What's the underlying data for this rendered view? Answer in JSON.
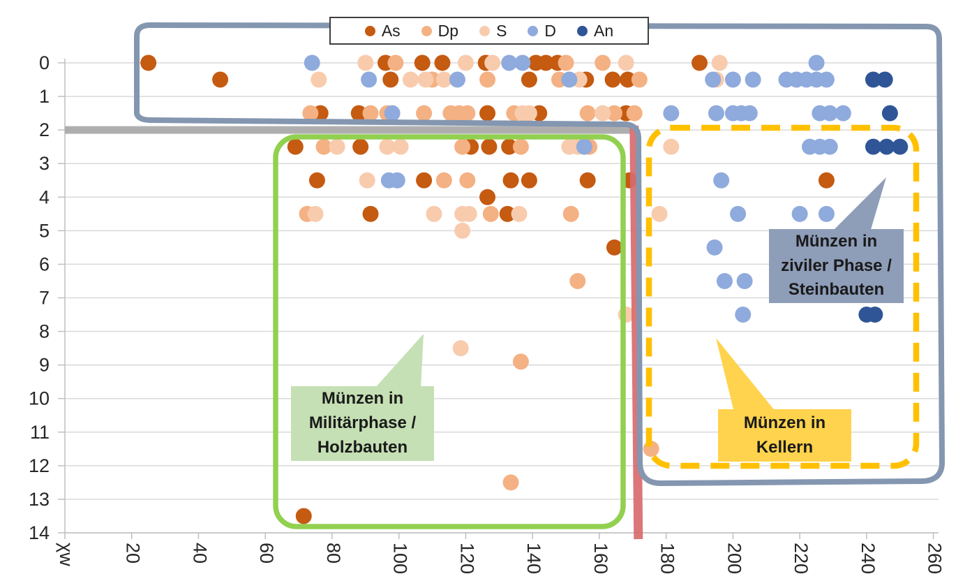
{
  "legend": {
    "items": [
      {
        "label": "As",
        "color": "#C55A11"
      },
      {
        "label": "Dp",
        "color": "#F4B183"
      },
      {
        "label": "S",
        "color": "#F8CBAD"
      },
      {
        "label": "D",
        "color": "#8FAADC"
      },
      {
        "label": "An",
        "color": "#2F5597"
      }
    ]
  },
  "annotations": {
    "military": {
      "lines": [
        "Münzen in",
        "Militärphase /",
        "Holzbauten"
      ],
      "fill": "#C5E0B4",
      "border_color": "#92D050",
      "border_style": "solid"
    },
    "kellern": {
      "lines": [
        "Münzen in",
        "Kellern"
      ],
      "fill": "#FFD34D",
      "border_color": "#FFC000",
      "border_style": "dashed"
    },
    "zivil": {
      "lines": [
        "Münzen in",
        "ziviler Phase /",
        "Steinbauten"
      ],
      "fill": "#8E9DB8",
      "border_color": "#8496B0",
      "border_style": "solid"
    }
  },
  "chart_data": {
    "type": "scatter",
    "title": "",
    "xlabel": "",
    "ylabel": "",
    "x_ticks": [
      {
        "value": 0,
        "label": "χw"
      },
      {
        "value": 20,
        "label": "20"
      },
      {
        "value": 40,
        "label": "40"
      },
      {
        "value": 60,
        "label": "60"
      },
      {
        "value": 80,
        "label": "80"
      },
      {
        "value": 100,
        "label": "100"
      },
      {
        "value": 120,
        "label": "120"
      },
      {
        "value": 140,
        "label": "140"
      },
      {
        "value": 160,
        "label": "160"
      },
      {
        "value": 180,
        "label": "180"
      },
      {
        "value": 200,
        "label": "200"
      },
      {
        "value": 220,
        "label": "220"
      },
      {
        "value": 240,
        "label": "240"
      },
      {
        "value": 260,
        "label": "260"
      }
    ],
    "y_ticks": [
      "0",
      "1",
      "2",
      "3",
      "4",
      "5",
      "6",
      "7",
      "8",
      "9",
      "10",
      "11",
      "12",
      "13",
      "14"
    ],
    "xlim": [
      0,
      262
    ],
    "ylim": [
      0,
      14
    ],
    "y_inverted": true,
    "grid": "horizontal",
    "legend_position": "top-center",
    "marker_lines": {
      "gray_horizontal_at_y": 2,
      "red_vertical_at_x": 170
    },
    "regions": {
      "blue_outline": "encloses y 0–2 across full width plus x 172–262 down to y 14 (ziviler Phase / Steinbauten)",
      "green_box": {
        "x": [
          63,
          167
        ],
        "y": [
          2.2,
          13.8
        ]
      },
      "yellow_dashed_box": {
        "x": [
          175,
          255
        ],
        "y": [
          1.9,
          12.0
        ]
      }
    },
    "series": [
      {
        "name": "As",
        "color": "#C55A11",
        "points": [
          [
            25,
            0
          ],
          [
            96,
            0
          ],
          [
            107,
            0
          ],
          [
            113,
            0
          ],
          [
            126,
            0
          ],
          [
            141,
            0
          ],
          [
            144,
            0
          ],
          [
            147.5,
            0
          ],
          [
            190,
            0
          ],
          [
            46.5,
            0.5
          ],
          [
            97.5,
            0.5
          ],
          [
            139,
            0.5
          ],
          [
            156,
            0.5
          ],
          [
            164,
            0.5
          ],
          [
            168.5,
            0.5
          ],
          [
            76.5,
            1.5
          ],
          [
            88,
            1.5
          ],
          [
            126.5,
            1.5
          ],
          [
            142,
            1.5
          ],
          [
            168,
            1.5
          ],
          [
            69,
            2.5
          ],
          [
            88.5,
            2.5
          ],
          [
            121.5,
            2.5
          ],
          [
            127,
            2.5
          ],
          [
            133,
            2.5
          ],
          [
            75.5,
            3.5
          ],
          [
            107.5,
            3.5
          ],
          [
            133.5,
            3.5
          ],
          [
            139,
            3.5
          ],
          [
            156.5,
            3.5
          ],
          [
            169,
            3.5
          ],
          [
            228,
            3.5
          ],
          [
            126.5,
            4
          ],
          [
            91.5,
            4.5
          ],
          [
            132.5,
            4.5
          ],
          [
            164.5,
            5.5
          ],
          [
            71.5,
            13.5
          ]
        ]
      },
      {
        "name": "Dp",
        "color": "#F4B183",
        "points": [
          [
            99,
            0
          ],
          [
            150,
            0
          ],
          [
            161,
            0
          ],
          [
            110,
            0.5
          ],
          [
            126.5,
            0.5
          ],
          [
            148,
            0.5
          ],
          [
            172,
            0.5
          ],
          [
            73.5,
            1.5
          ],
          [
            91.5,
            1.5
          ],
          [
            96.5,
            1.5
          ],
          [
            107.5,
            1.5
          ],
          [
            115.5,
            1.5
          ],
          [
            118,
            1.5
          ],
          [
            120.5,
            1.5
          ],
          [
            134.5,
            1.5
          ],
          [
            156.5,
            1.5
          ],
          [
            164.5,
            1.5
          ],
          [
            170.5,
            1.5
          ],
          [
            77.5,
            2.5
          ],
          [
            119,
            2.5
          ],
          [
            136.5,
            2.5
          ],
          [
            157,
            2.5
          ],
          [
            113.5,
            3.5
          ],
          [
            120.5,
            3.5
          ],
          [
            72.5,
            4.5
          ],
          [
            127.5,
            4.5
          ],
          [
            151.5,
            4.5
          ],
          [
            153.5,
            6.5
          ],
          [
            136.5,
            8.9
          ],
          [
            175.5,
            11.5
          ],
          [
            133.5,
            12.5
          ]
        ]
      },
      {
        "name": "S",
        "color": "#F8CBAD",
        "points": [
          [
            90,
            0
          ],
          [
            120,
            0
          ],
          [
            128,
            0
          ],
          [
            168,
            0
          ],
          [
            196,
            0
          ],
          [
            76,
            0.5
          ],
          [
            103.5,
            0.5
          ],
          [
            108,
            0.5
          ],
          [
            113.5,
            0.5
          ],
          [
            154,
            0.5
          ],
          [
            195,
            0.5
          ],
          [
            137,
            1.5
          ],
          [
            139,
            1.5
          ],
          [
            161,
            1.5
          ],
          [
            81.5,
            2.5
          ],
          [
            96.5,
            2.5
          ],
          [
            100.5,
            2.5
          ],
          [
            151,
            2.5
          ],
          [
            153.5,
            2.5
          ],
          [
            181.5,
            2.5
          ],
          [
            90.5,
            3.5
          ],
          [
            75,
            4.5
          ],
          [
            110.5,
            4.5
          ],
          [
            119,
            4.5
          ],
          [
            121,
            4.5
          ],
          [
            136,
            4.5
          ],
          [
            178,
            4.5
          ],
          [
            119,
            5
          ],
          [
            168,
            7.5
          ],
          [
            118.5,
            8.5
          ]
        ]
      },
      {
        "name": "D",
        "color": "#8FAADC",
        "points": [
          [
            74,
            0
          ],
          [
            133,
            0
          ],
          [
            137,
            0
          ],
          [
            225,
            0
          ],
          [
            91,
            0.5
          ],
          [
            117.5,
            0.5
          ],
          [
            151,
            0.5
          ],
          [
            194,
            0.5
          ],
          [
            200,
            0.5
          ],
          [
            206,
            0.5
          ],
          [
            216,
            0.5
          ],
          [
            219,
            0.5
          ],
          [
            222,
            0.5
          ],
          [
            225,
            0.5
          ],
          [
            228,
            0.5
          ],
          [
            98,
            1.5
          ],
          [
            181.5,
            1.5
          ],
          [
            195,
            1.5
          ],
          [
            200,
            1.5
          ],
          [
            202.5,
            1.5
          ],
          [
            205,
            1.5
          ],
          [
            226,
            1.5
          ],
          [
            229,
            1.5
          ],
          [
            233,
            1.5
          ],
          [
            155.5,
            2.5
          ],
          [
            223,
            2.5
          ],
          [
            226,
            2.5
          ],
          [
            229,
            2.5
          ],
          [
            97,
            3.5
          ],
          [
            99.5,
            3.5
          ],
          [
            196.5,
            3.5
          ],
          [
            201.5,
            4.5
          ],
          [
            220,
            4.5
          ],
          [
            228,
            4.5
          ],
          [
            194.5,
            5.5
          ],
          [
            197.5,
            6.5
          ],
          [
            203.5,
            6.5
          ],
          [
            203,
            7.5
          ]
        ]
      },
      {
        "name": "An",
        "color": "#2F5597",
        "points": [
          [
            242,
            0.5
          ],
          [
            245.5,
            0.5
          ],
          [
            247,
            1.5
          ],
          [
            242,
            2.5
          ],
          [
            246,
            2.5
          ],
          [
            250,
            2.5
          ],
          [
            240,
            7.5
          ],
          [
            242.5,
            7.5
          ]
        ]
      }
    ]
  },
  "colors": {
    "grid": "#D9D9D9",
    "axis": "#BFBFBF",
    "tick_text": "#262626",
    "gray_bar": "#A6A6A6",
    "red_bar": "#D86A6E",
    "blue_outline": "#8496B0",
    "green_outline": "#92D050",
    "yellow_outline": "#FFC000"
  }
}
